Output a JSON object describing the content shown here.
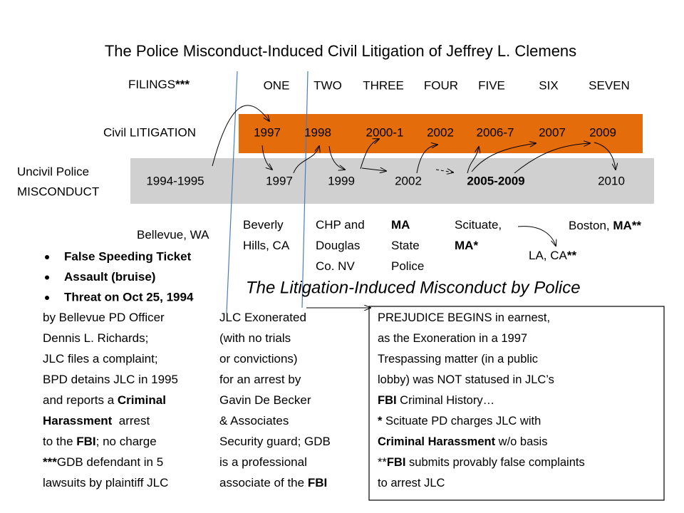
{
  "title": "The Police Misconduct-Induced Civil Litigation of Jeffrey L. Clemens",
  "subtitle": "The Litigation-Induced Misconduct by Police",
  "filings": {
    "label": [
      "FILINGS",
      {
        "text": "***",
        "bold": true
      }
    ],
    "numbers": [
      "ONE",
      "TWO",
      "THREE",
      "FOUR",
      "FIVE",
      "SIX",
      "SEVEN"
    ]
  },
  "litigation": {
    "label": "Civil LITIGATION",
    "years": [
      "1997",
      "1998",
      "2000-1",
      "2002",
      "2006-7",
      "2007",
      "2009"
    ]
  },
  "misconduct": {
    "label": [
      "Uncivil Police",
      "MISCONDUCT"
    ],
    "years": [
      "1994-1995",
      "1997",
      "1999",
      "2002",
      {
        "text": "2005-2009",
        "bold": true
      },
      "2010"
    ]
  },
  "locations": [
    [
      [
        "Bellevue, WA"
      ]
    ],
    [
      [
        "Beverly"
      ],
      [
        "Hills, CA"
      ]
    ],
    [
      [
        "CHP and"
      ],
      [
        "Douglas"
      ],
      [
        "Co. NV"
      ]
    ],
    [
      [
        {
          "text": "MA",
          "bold": true
        }
      ],
      [
        "State"
      ],
      [
        "Police"
      ]
    ],
    [
      [
        "Scituate,"
      ],
      [
        {
          "text": "MA*",
          "bold": true
        }
      ]
    ],
    [
      [
        "LA, CA",
        {
          "text": "**",
          "bold": true
        }
      ]
    ],
    [
      [
        "Boston, ",
        {
          "text": "MA**",
          "bold": true
        }
      ]
    ]
  ],
  "bullets": [
    "False Speeding Ticket",
    "Assault (bruise)",
    "Threat on Oct 25, 1994"
  ],
  "left_notes": [
    [
      "by Bellevue PD Officer"
    ],
    [
      "Dennis L. Richards;"
    ],
    [
      "JLC files a complaint;"
    ],
    [
      "BPD detains JLC in 1995"
    ],
    [
      "and reports a ",
      {
        "text": "Criminal",
        "bold": true
      }
    ],
    [
      {
        "text": "Harassment",
        "bold": true
      },
      "  arrest"
    ],
    [
      "to the ",
      {
        "text": "FBI",
        "bold": true
      },
      "; no charge"
    ],
    [
      {
        "text": "***",
        "bold": true
      },
      "GDB defendant in 5"
    ],
    [
      "lawsuits by plaintiff JLC"
    ]
  ],
  "middle_notes": [
    [
      "JLC Exonerated"
    ],
    [
      "(with no trials"
    ],
    [
      "or convictions)"
    ],
    [
      "for an arrest by"
    ],
    [
      "Gavin De Becker"
    ],
    [
      "& Associates"
    ],
    [
      "Security guard; GDB"
    ],
    [
      "is a professional"
    ],
    [
      "associate of the ",
      {
        "text": "FBI",
        "bold": true
      }
    ]
  ],
  "box_notes": [
    [
      "PREJUDICE BEGINS in earnest,"
    ],
    [
      "as the Exoneration in a 1997"
    ],
    [
      "Trespassing matter (in a public"
    ],
    [
      "lobby) was NOT statused in JLC’s"
    ],
    [
      {
        "text": "FBI",
        "bold": true
      },
      " Criminal History…"
    ],
    [
      {
        "text": "*",
        "bold": true
      },
      " Scituate PD charges JLC with"
    ],
    [
      {
        "text": "Criminal Harassment",
        "bold": true
      },
      " w/o basis"
    ],
    [
      "**",
      {
        "text": "FBI",
        "bold": true
      },
      " submits provably false complaints"
    ],
    [
      "to arrest JLC"
    ]
  ]
}
